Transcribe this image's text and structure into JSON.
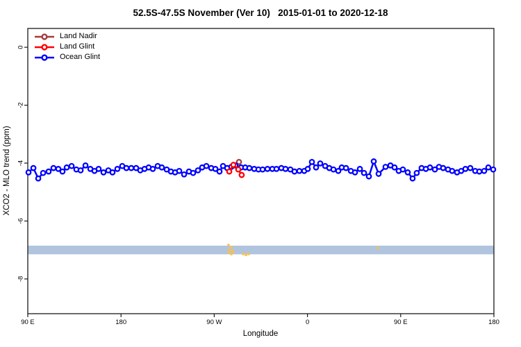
{
  "chart_data": {
    "type": "line",
    "title": "52.5S-47.5S November (Ver 10)   2015-01-01 to 2020-12-18",
    "xlabel": "Longitude",
    "ylabel": "XCO2 - MLO trend (ppm)",
    "xlim": [
      90,
      540
    ],
    "ylim": [
      0.65,
      -9.2
    ],
    "grid": "off",
    "legend_position": "top-left-inside",
    "x_ticks": [
      {
        "value": 90,
        "label": "90 E"
      },
      {
        "value": 180,
        "label": "180"
      },
      {
        "value": 270,
        "label": "90 W"
      },
      {
        "value": 360,
        "label": "0"
      },
      {
        "value": 450,
        "label": "90 E"
      },
      {
        "value": 540,
        "label": "180"
      }
    ],
    "y_ticks": [
      {
        "value": 0,
        "label": "0"
      },
      {
        "value": -2,
        "label": "-2"
      },
      {
        "value": -4,
        "label": "-4"
      },
      {
        "value": -6,
        "label": "-6"
      },
      {
        "value": -8,
        "label": "-8"
      }
    ],
    "band": {
      "name": "reference-band",
      "y_from": -6.85,
      "y_to": -7.15,
      "color": "#B0C4DE"
    },
    "flagged_points": {
      "name": "flagged-soundings",
      "color": "#F6C14F",
      "points": [
        [
          283.8,
          -6.83
        ],
        [
          286.5,
          -6.9
        ],
        [
          284.5,
          -7.0
        ],
        [
          287.2,
          -7.02
        ],
        [
          283.8,
          -7.09
        ],
        [
          286.5,
          -7.14
        ],
        [
          288.5,
          -7.07
        ],
        [
          297.9,
          -7.14
        ],
        [
          300.6,
          -7.17
        ],
        [
          303.3,
          -7.14
        ],
        [
          428.0,
          -6.93
        ]
      ]
    },
    "series": [
      {
        "name": "Land Nadir",
        "color": "#A53A3A",
        "points": [
          [
            293.9,
            -3.96
          ]
        ]
      },
      {
        "name": "Land Glint",
        "color": "#FF0000",
        "points": [
          [
            284.5,
            -4.29
          ],
          [
            288.5,
            -4.06
          ],
          [
            293.2,
            -4.22
          ],
          [
            296.5,
            -4.41
          ]
        ]
      },
      {
        "name": "Ocean Glint",
        "color": "#0000FF",
        "points": [
          [
            90.7,
            -4.32
          ],
          [
            95.4,
            -4.17
          ],
          [
            100.1,
            -4.53
          ],
          [
            104.8,
            -4.34
          ],
          [
            110.1,
            -4.29
          ],
          [
            114.8,
            -4.17
          ],
          [
            119.5,
            -4.2
          ],
          [
            123.5,
            -4.29
          ],
          [
            127.6,
            -4.15
          ],
          [
            132.3,
            -4.1
          ],
          [
            136.9,
            -4.22
          ],
          [
            141.0,
            -4.25
          ],
          [
            145.7,
            -4.08
          ],
          [
            150.4,
            -4.2
          ],
          [
            154.4,
            -4.27
          ],
          [
            158.4,
            -4.2
          ],
          [
            163.1,
            -4.32
          ],
          [
            167.8,
            -4.25
          ],
          [
            171.8,
            -4.32
          ],
          [
            176.5,
            -4.2
          ],
          [
            181.2,
            -4.1
          ],
          [
            185.2,
            -4.17
          ],
          [
            189.9,
            -4.17
          ],
          [
            194.6,
            -4.17
          ],
          [
            198.6,
            -4.25
          ],
          [
            202.7,
            -4.2
          ],
          [
            206.7,
            -4.15
          ],
          [
            210.7,
            -4.2
          ],
          [
            215.4,
            -4.1
          ],
          [
            219.4,
            -4.15
          ],
          [
            224.1,
            -4.22
          ],
          [
            228.2,
            -4.29
          ],
          [
            232.2,
            -4.32
          ],
          [
            236.2,
            -4.27
          ],
          [
            240.9,
            -4.39
          ],
          [
            245.6,
            -4.29
          ],
          [
            249.6,
            -4.34
          ],
          [
            254.3,
            -4.25
          ],
          [
            258.3,
            -4.15
          ],
          [
            262.4,
            -4.1
          ],
          [
            267.1,
            -4.17
          ],
          [
            271.1,
            -4.2
          ],
          [
            275.1,
            -4.29
          ],
          [
            278.5,
            -4.1
          ],
          [
            282.5,
            -4.17
          ],
          [
            286.5,
            -4.13
          ],
          [
            290.5,
            -4.08
          ],
          [
            295.9,
            -4.15
          ],
          [
            299.9,
            -4.15
          ],
          [
            303.9,
            -4.17
          ],
          [
            308.6,
            -4.2
          ],
          [
            312.7,
            -4.22
          ],
          [
            316.7,
            -4.22
          ],
          [
            321.4,
            -4.2
          ],
          [
            326.1,
            -4.2
          ],
          [
            330.1,
            -4.2
          ],
          [
            334.8,
            -4.17
          ],
          [
            338.8,
            -4.2
          ],
          [
            343.5,
            -4.22
          ],
          [
            347.5,
            -4.29
          ],
          [
            352.2,
            -4.27
          ],
          [
            356.9,
            -4.27
          ],
          [
            360.3,
            -4.2
          ],
          [
            364.3,
            -3.96
          ],
          [
            368.3,
            -4.15
          ],
          [
            372.3,
            -4.01
          ],
          [
            377.1,
            -4.1
          ],
          [
            381.1,
            -4.17
          ],
          [
            385.1,
            -4.22
          ],
          [
            389.8,
            -4.27
          ],
          [
            393.1,
            -4.15
          ],
          [
            397.2,
            -4.17
          ],
          [
            401.9,
            -4.27
          ],
          [
            405.9,
            -4.32
          ],
          [
            410.6,
            -4.2
          ],
          [
            414.6,
            -4.34
          ],
          [
            419.3,
            -4.46
          ],
          [
            424.0,
            -3.94
          ],
          [
            428.7,
            -4.37
          ],
          [
            435.4,
            -4.13
          ],
          [
            440.1,
            -4.08
          ],
          [
            444.1,
            -4.15
          ],
          [
            448.1,
            -4.27
          ],
          [
            452.1,
            -4.22
          ],
          [
            456.8,
            -4.32
          ],
          [
            461.5,
            -4.53
          ],
          [
            465.5,
            -4.34
          ],
          [
            470.2,
            -4.17
          ],
          [
            474.3,
            -4.2
          ],
          [
            478.3,
            -4.15
          ],
          [
            483.0,
            -4.22
          ],
          [
            487.0,
            -4.13
          ],
          [
            491.0,
            -4.17
          ],
          [
            495.7,
            -4.22
          ],
          [
            499.7,
            -4.27
          ],
          [
            504.4,
            -4.32
          ],
          [
            508.4,
            -4.27
          ],
          [
            512.5,
            -4.2
          ],
          [
            517.2,
            -4.17
          ],
          [
            521.9,
            -4.27
          ],
          [
            525.9,
            -4.29
          ],
          [
            530.6,
            -4.27
          ],
          [
            534.6,
            -4.15
          ],
          [
            539.3,
            -4.22
          ]
        ]
      }
    ]
  }
}
